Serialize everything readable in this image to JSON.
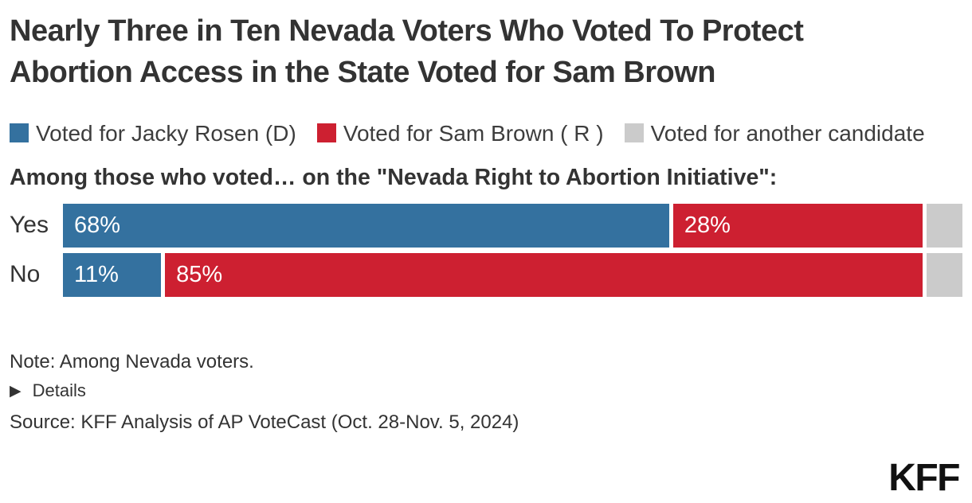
{
  "title": "Nearly Three in Ten Nevada Voters Who Voted To Protect Abortion Access in the State Voted for Sam Brown",
  "legend": {
    "items": [
      {
        "label": "Voted for Jacky Rosen (D)",
        "color": "#34719f"
      },
      {
        "label": "Voted for Sam Brown ( R )",
        "color": "#cd2031"
      },
      {
        "label": "Voted for another candidate",
        "color": "#cbcbcb"
      }
    ]
  },
  "subtitle": "Among those who voted… on the \"Nevada Right to Abortion Initiative\":",
  "chart_data": {
    "type": "bar",
    "orientation": "horizontal",
    "stacked": true,
    "title": "Nearly Three in Ten Nevada Voters Who Voted To Protect Abortion Access in the State Voted for Sam Brown",
    "subtitle": "Among those who voted… on the \"Nevada Right to Abortion Initiative\":",
    "categories": [
      "Yes",
      "No"
    ],
    "series": [
      {
        "name": "Voted for Jacky Rosen (D)",
        "color": "#34719f",
        "values": [
          68,
          11
        ],
        "labels": [
          "68%",
          "11%"
        ]
      },
      {
        "name": "Voted for Sam Brown ( R )",
        "color": "#cd2031",
        "values": [
          28,
          85
        ],
        "labels": [
          "28%",
          "85%"
        ]
      },
      {
        "name": "Voted for another candidate",
        "color": "#cbcbcb",
        "values": [
          4,
          4
        ],
        "labels": [
          "",
          ""
        ]
      }
    ],
    "xlim": [
      0,
      100
    ],
    "xlabel": "",
    "ylabel": "",
    "grid": false,
    "legend_position": "top",
    "value_labels_inside": true
  },
  "footer": {
    "note": "Note: Among Nevada voters.",
    "details_label": "Details",
    "source": "Source: KFF Analysis of AP VoteCast (Oct. 28-Nov. 5, 2024)"
  },
  "icons": {
    "details_triangle": "▶"
  },
  "logo_text": "KFF",
  "colors": {
    "rosen_blue": "#34719f",
    "brown_red": "#cd2031",
    "other_gray": "#cbcbcb",
    "text_dark": "#333333",
    "background": "#ffffff"
  }
}
